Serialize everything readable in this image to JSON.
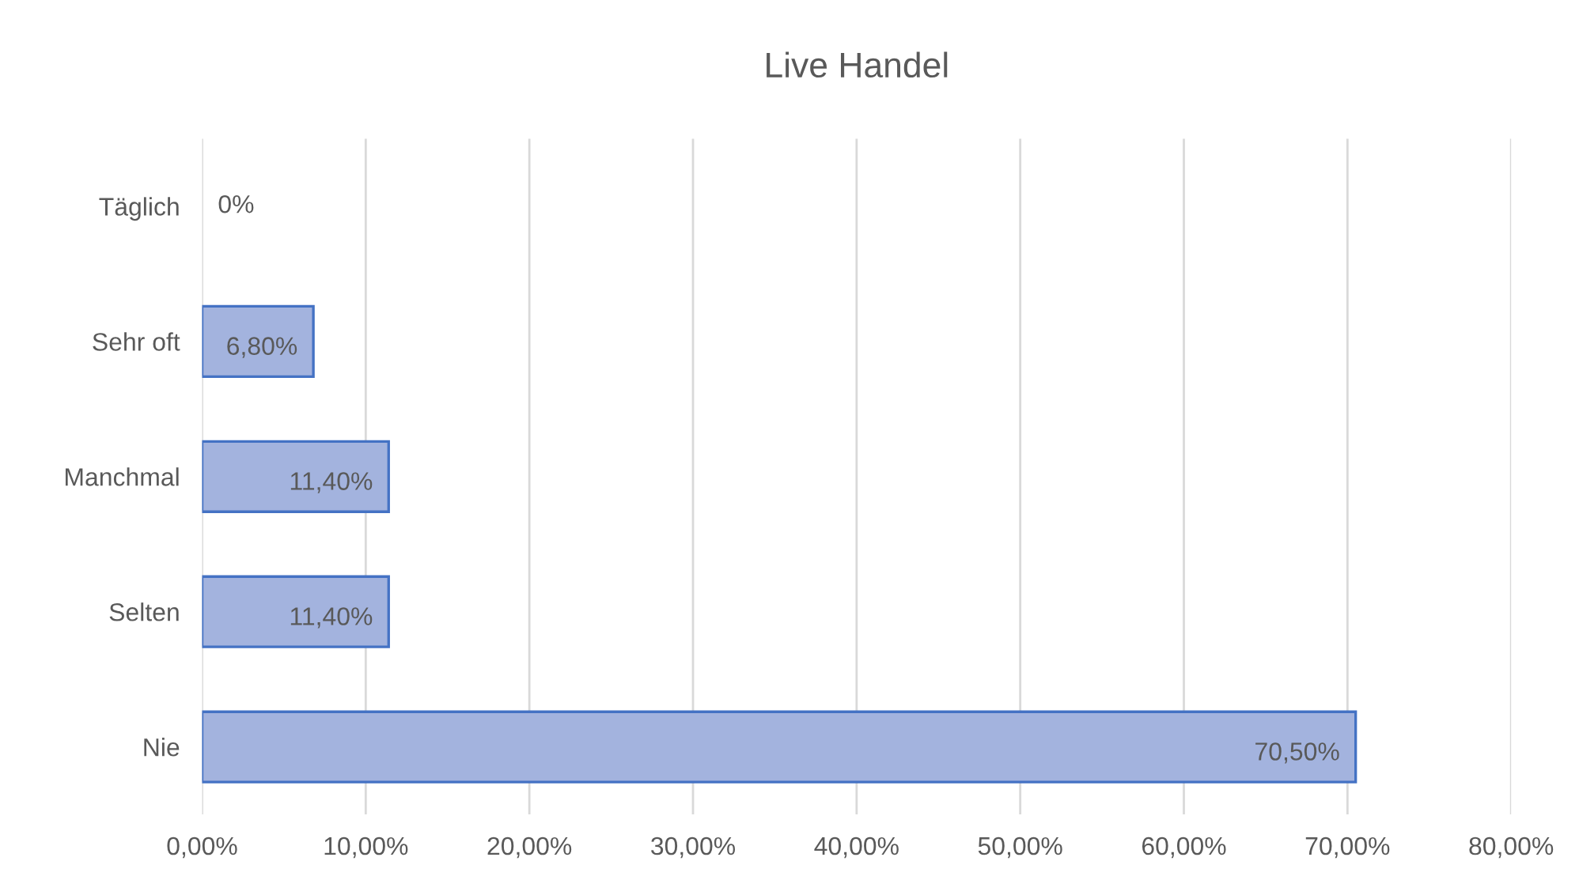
{
  "chart_data": {
    "type": "bar",
    "orientation": "horizontal",
    "title": "Live Handel",
    "categories": [
      "Täglich",
      "Sehr oft",
      "Manchmal",
      "Selten",
      "Nie"
    ],
    "values": [
      0,
      6.8,
      11.4,
      11.4,
      70.5
    ],
    "value_labels": [
      "0%",
      "6,80%",
      "11,40%",
      "11,40%",
      "70,50%"
    ],
    "color": "#a3b3de",
    "xlim": [
      0,
      80
    ],
    "xticks": [
      {
        "value": 0,
        "label": "0,00%"
      },
      {
        "value": 10,
        "label": "10,00%"
      },
      {
        "value": 20,
        "label": "20,00%"
      },
      {
        "value": 30,
        "label": "30,00%"
      },
      {
        "value": 40,
        "label": "40,00%"
      },
      {
        "value": 50,
        "label": "50,00%"
      },
      {
        "value": 60,
        "label": "60,00%"
      },
      {
        "value": 70,
        "label": "70,00%"
      },
      {
        "value": 80,
        "label": "80,00%"
      }
    ],
    "grid": "x"
  }
}
